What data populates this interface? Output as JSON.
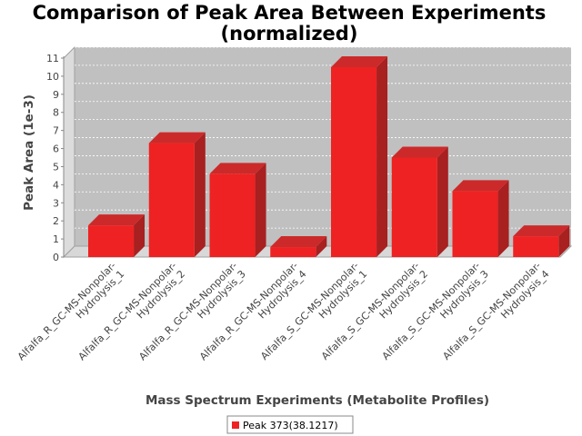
{
  "chart_data": {
    "type": "bar",
    "title": "Comparison of Peak Area Between Experiments",
    "subtitle": "(normalized)",
    "xlabel": "Mass Spectrum Experiments (Metabolite Profiles)",
    "ylabel": "Peak Area (1e-3)",
    "ylim": [
      0,
      11
    ],
    "yticks": [
      0,
      1,
      2,
      3,
      4,
      5,
      6,
      7,
      8,
      9,
      10,
      11
    ],
    "grid": true,
    "legend_position": "bottom",
    "categories": [
      [
        "Alfalfa_R_GC-MS-Nonpolar-",
        "Hydrolysis_1"
      ],
      [
        "Alfalfa_R_GC-MS-Nonpolar-",
        "Hydrolysis_2"
      ],
      [
        "Alfalfa_R_GC-MS-Nonpolar-",
        "Hydrolysis_3"
      ],
      [
        "Alfalfa_R_GC-MS-Nonpolar-",
        "Hydrolysis_4"
      ],
      [
        "Alfalfa_S_GC-MS-Nonpolar-",
        "Hydrolysis_1"
      ],
      [
        "Alfalfa_S_GC-MS-Nonpolar-",
        "Hydrolysis_2"
      ],
      [
        "Alfalfa_S_GC-MS-Nonpolar-",
        "Hydrolysis_3"
      ],
      [
        "Alfalfa_S_GC-MS-Nonpolar-",
        "Hydrolysis_4"
      ]
    ],
    "series": [
      {
        "name": "Peak 373(38.1217)",
        "color": "#ee2222",
        "values": [
          1.75,
          6.3,
          4.6,
          0.55,
          10.5,
          5.5,
          3.65,
          1.15
        ]
      }
    ]
  }
}
